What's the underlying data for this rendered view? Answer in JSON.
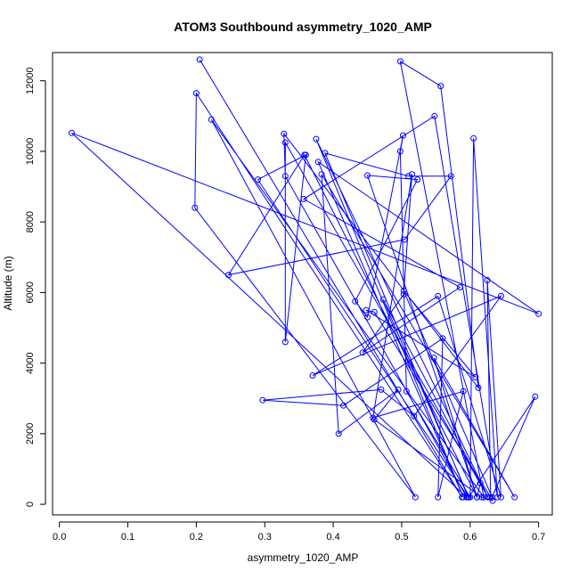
{
  "chart_data": {
    "type": "line",
    "title": "ATOM3 Southbound asymmetry_1020_AMP",
    "xlabel": "asymmetry_1020_AMP",
    "ylabel": "Altitude (m)",
    "xlim": [
      -0.01,
      0.72
    ],
    "ylim": [
      -300,
      12800
    ],
    "x_ticks": [
      0.0,
      0.1,
      0.2,
      0.3,
      0.4,
      0.5,
      0.6,
      0.7
    ],
    "x_tick_labels": [
      "0.0",
      "0.1",
      "0.2",
      "0.3",
      "0.4",
      "0.5",
      "0.6",
      "0.7"
    ],
    "y_ticks": [
      0,
      2000,
      4000,
      6000,
      8000,
      10000,
      12000
    ],
    "y_tick_labels": [
      "0",
      "2000",
      "4000",
      "6000",
      "8000",
      "10000",
      "12000"
    ],
    "grid": false,
    "legend": "none",
    "color": "#0000ff",
    "markers": "open-circle",
    "series": [
      {
        "points": [
          [
            0.205,
            12600
          ],
          [
            0.588,
            200
          ],
          [
            0.2,
            11650
          ],
          [
            0.198,
            8400
          ],
          [
            0.52,
            200
          ],
          [
            0.222,
            10900
          ],
          [
            0.62,
            200
          ],
          [
            0.498,
            12550
          ],
          [
            0.557,
            11850
          ],
          [
            0.612,
            3300
          ],
          [
            0.328,
            10500
          ],
          [
            0.33,
            9300
          ],
          [
            0.595,
            200
          ],
          [
            0.018,
            10520
          ],
          [
            0.7,
            5400
          ],
          [
            0.378,
            9700
          ],
          [
            0.59,
            200
          ],
          [
            0.375,
            10350
          ],
          [
            0.626,
            200
          ],
          [
            0.33,
            10250
          ],
          [
            0.33,
            4600
          ],
          [
            0.36,
            9900
          ],
          [
            0.29,
            9200
          ],
          [
            0.597,
            200
          ],
          [
            0.388,
            9950
          ],
          [
            0.51,
            9300
          ],
          [
            0.572,
            9300
          ],
          [
            0.504,
            7500
          ],
          [
            0.247,
            6500
          ],
          [
            0.358,
            9900
          ],
          [
            0.61,
            200
          ],
          [
            0.45,
            9320
          ],
          [
            0.523,
            9200
          ],
          [
            0.432,
            5750
          ],
          [
            0.45,
            5300
          ],
          [
            0.502,
            10450
          ],
          [
            0.498,
            10000
          ],
          [
            0.507,
            3200
          ],
          [
            0.6,
            200
          ],
          [
            0.605,
            10370
          ],
          [
            0.64,
            200
          ],
          [
            0.548,
            11000
          ],
          [
            0.357,
            8650
          ],
          [
            0.585,
            6150
          ],
          [
            0.443,
            4300
          ],
          [
            0.503,
            5950
          ],
          [
            0.515,
            9350
          ],
          [
            0.458,
            2450
          ],
          [
            0.59,
            3200
          ],
          [
            0.553,
            200
          ],
          [
            0.56,
            4700
          ],
          [
            0.415,
            2800
          ],
          [
            0.297,
            2950
          ],
          [
            0.47,
            3250
          ],
          [
            0.518,
            2500
          ],
          [
            0.645,
            5900
          ],
          [
            0.37,
            3650
          ],
          [
            0.553,
            5900
          ],
          [
            0.645,
            200
          ],
          [
            0.625,
            6350
          ],
          [
            0.63,
            200
          ],
          [
            0.46,
            5450
          ],
          [
            0.448,
            5500
          ],
          [
            0.608,
            3600
          ],
          [
            0.503,
            6050
          ],
          [
            0.632,
            200
          ],
          [
            0.695,
            3050
          ],
          [
            0.598,
            200
          ],
          [
            0.473,
            5800
          ],
          [
            0.615,
            600
          ],
          [
            0.61,
            200
          ],
          [
            0.547,
            4150
          ],
          [
            0.665,
            200
          ],
          [
            0.383,
            9350
          ],
          [
            0.408,
            2000
          ],
          [
            0.495,
            3250
          ],
          [
            0.46,
            2400
          ],
          [
            0.617,
            200
          ],
          [
            0.633,
            100
          ]
        ]
      }
    ]
  }
}
